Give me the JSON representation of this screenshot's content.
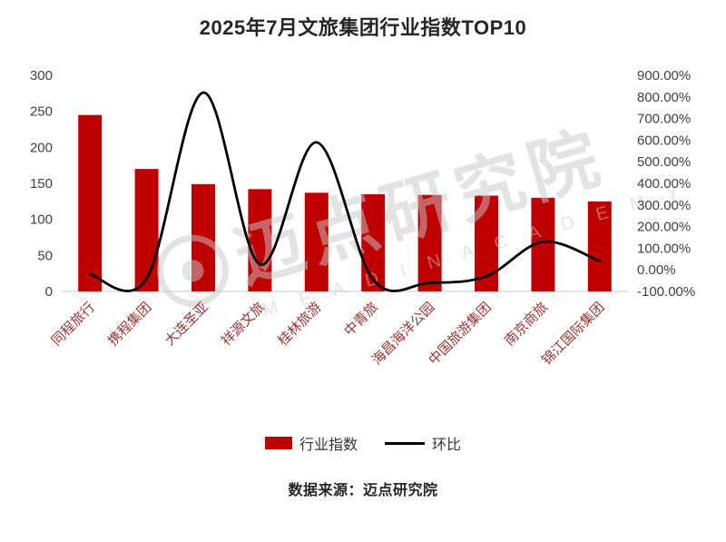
{
  "title": "2025年7月文旅集团行业指数TOP10",
  "source_note": "数据来源：迈点研究院",
  "watermark": {
    "logo": "circle-logo",
    "text": "迈点研究院",
    "subtext": "M E A D I N   A C A D E M Y"
  },
  "legend": {
    "items": [
      {
        "label": "行业指数",
        "swatch": "bar",
        "color": "#c00000"
      },
      {
        "label": "环比",
        "swatch": "line",
        "color": "#000000"
      }
    ]
  },
  "colors": {
    "bar": "#c00000",
    "line": "#000000",
    "axis_text": "#404040",
    "category_text": "#943634",
    "axis_line": "#c9c9c9",
    "watermark": "#c8c8c8"
  },
  "chart_data": {
    "type": "bar",
    "combo": "bar+line",
    "title": "2025年7月文旅集团行业指数TOP10",
    "categories": [
      "同程旅行",
      "携程集团",
      "大连圣亚",
      "祥源文旅",
      "桂林旅游",
      "中青旅",
      "海昌海洋公园",
      "中国旅游集团",
      "南京商旅",
      "锦江国际集团"
    ],
    "series": [
      {
        "name": "行业指数",
        "type": "bar",
        "axis": "left",
        "color": "#c00000",
        "values": [
          245,
          170,
          149,
          142,
          137,
          135,
          134,
          133,
          130,
          125
        ]
      },
      {
        "name": "环比",
        "type": "line",
        "axis": "right",
        "color": "#000000",
        "values": [
          -20,
          -40,
          820,
          25,
          590,
          -45,
          -60,
          -30,
          130,
          40
        ]
      }
    ],
    "left_axis": {
      "min": 0,
      "max": 300,
      "ticks": [
        0,
        50,
        100,
        150,
        200,
        250,
        300
      ],
      "labels": [
        "0",
        "50",
        "100",
        "150",
        "200",
        "250",
        "300"
      ]
    },
    "right_axis": {
      "min": -100,
      "max": 900,
      "ticks": [
        -100,
        0,
        100,
        200,
        300,
        400,
        500,
        600,
        700,
        800,
        900
      ],
      "labels": [
        "-100.00%",
        "0.00%",
        "100.00%",
        "200.00%",
        "300.00%",
        "400.00%",
        "500.00%",
        "600.00%",
        "700.00%",
        "800.00%",
        "900.00%"
      ]
    },
    "grid": false,
    "legend_position": "bottom"
  }
}
